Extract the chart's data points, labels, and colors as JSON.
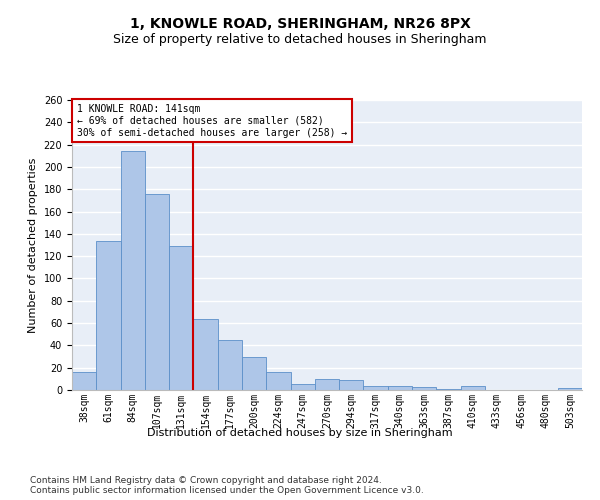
{
  "title1": "1, KNOWLE ROAD, SHERINGHAM, NR26 8PX",
  "title2": "Size of property relative to detached houses in Sheringham",
  "xlabel": "Distribution of detached houses by size in Sheringham",
  "ylabel": "Number of detached properties",
  "footnote": "Contains HM Land Registry data © Crown copyright and database right 2024.\nContains public sector information licensed under the Open Government Licence v3.0.",
  "bar_labels": [
    "38sqm",
    "61sqm",
    "84sqm",
    "107sqm",
    "131sqm",
    "154sqm",
    "177sqm",
    "200sqm",
    "224sqm",
    "247sqm",
    "270sqm",
    "294sqm",
    "317sqm",
    "340sqm",
    "363sqm",
    "387sqm",
    "410sqm",
    "433sqm",
    "456sqm",
    "480sqm",
    "503sqm"
  ],
  "bar_heights": [
    16,
    134,
    214,
    176,
    129,
    64,
    45,
    30,
    16,
    5,
    10,
    9,
    4,
    4,
    3,
    1,
    4,
    0,
    0,
    0,
    2
  ],
  "bar_color": "#aec6e8",
  "bar_edge_color": "#5b8fc9",
  "vline_pos": 4.5,
  "vline_color": "#cc0000",
  "annotation_box_color": "#cc0000",
  "annotation_text_line1": "1 KNOWLE ROAD: 141sqm",
  "annotation_text_line2": "← 69% of detached houses are smaller (582)",
  "annotation_text_line3": "30% of semi-detached houses are larger (258) →",
  "ylim": [
    0,
    260
  ],
  "yticks": [
    0,
    20,
    40,
    60,
    80,
    100,
    120,
    140,
    160,
    180,
    200,
    220,
    240,
    260
  ],
  "background_color": "#e8eef7",
  "grid_color": "#ffffff",
  "title1_fontsize": 10,
  "title2_fontsize": 9,
  "axis_label_fontsize": 8,
  "tick_fontsize": 7,
  "annotation_fontsize": 7,
  "footnote_fontsize": 6.5
}
